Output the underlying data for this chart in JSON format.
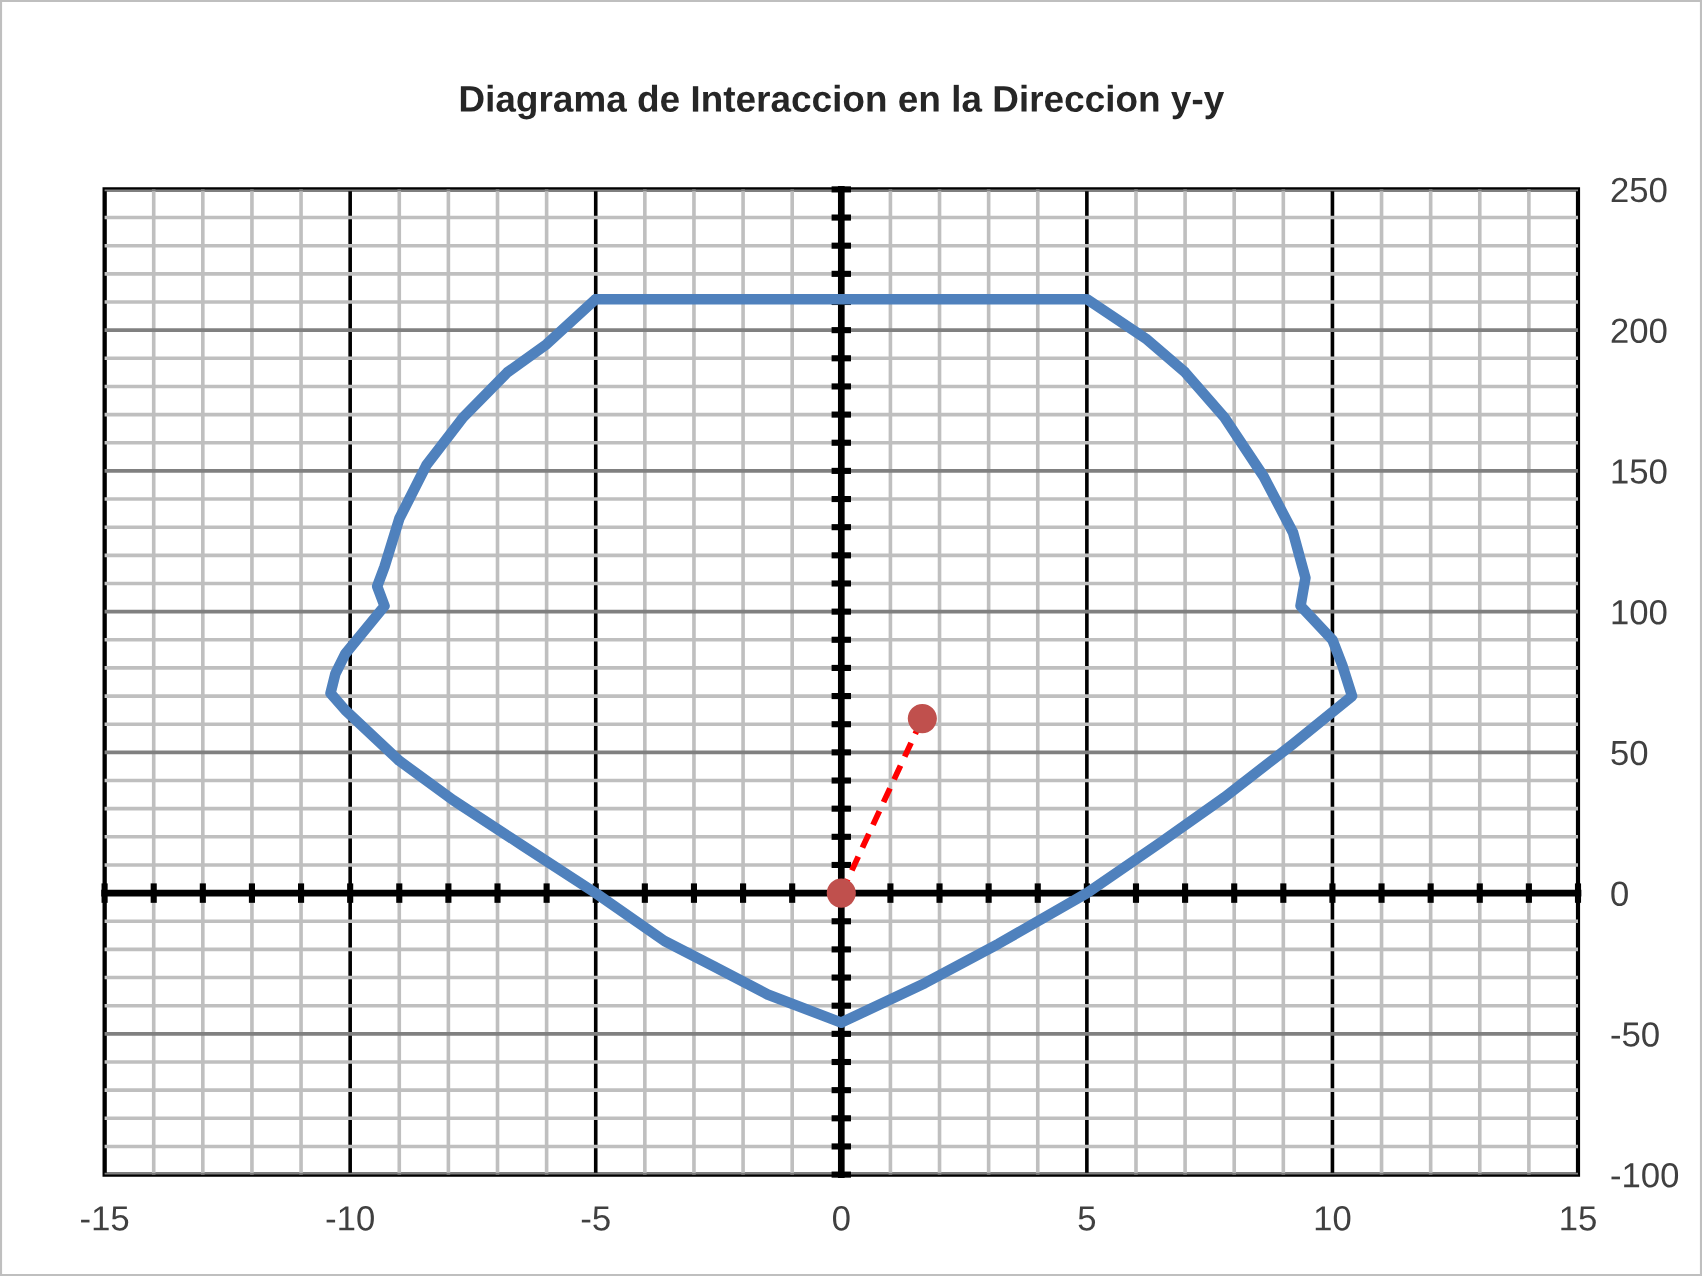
{
  "chart_data": {
    "type": "line",
    "title": "Diagrama de Interaccion en la Direccion y-y",
    "series": [
      {
        "color": "#4f81bd",
        "x": [
          -5,
          5,
          6.2,
          7.0,
          7.8,
          8.6,
          9.2,
          9.45,
          9.35,
          10.0,
          10.2,
          10.4,
          9.2,
          7.8,
          6.5,
          5,
          3.2,
          1.7,
          0
        ],
        "values": [
          211,
          211,
          197,
          185,
          169,
          148,
          128,
          112,
          102,
          90,
          81,
          70,
          53,
          34,
          18,
          0,
          -18,
          -32,
          -46
        ]
      },
      {
        "color": "#4f81bd",
        "x": [
          0,
          -1.5,
          -2.6,
          -3.6,
          -5,
          -6.5,
          -7.9,
          -9.0,
          -10.1,
          -10.4,
          -10.3,
          -10.1,
          -9.3,
          -9.45,
          -9.3,
          -9.0,
          -8.45,
          -7.7,
          -6.8,
          -6.0,
          -5
        ],
        "values": [
          -46,
          -36,
          -26,
          -17,
          0,
          17,
          33,
          47,
          65,
          71,
          78,
          85,
          102,
          109,
          116,
          133,
          152,
          169,
          185,
          195,
          211
        ]
      },
      {
        "color": "#ff0000",
        "colors": [
          "#c0504d",
          "#c0504d"
        ],
        "marker": "circle",
        "line_style": "dashed",
        "x": [
          0,
          1.65
        ],
        "values": [
          0,
          62
        ]
      }
    ],
    "xlim": [
      -15,
      15
    ],
    "ylim": [
      -100,
      250
    ],
    "xticks": [
      -15,
      {
        "value": -14,
        "label": null
      },
      {
        "value": -13,
        "label": null
      },
      {
        "value": -12,
        "label": null
      },
      {
        "value": -11,
        "label": null
      },
      -10,
      {
        "value": -9,
        "label": null
      },
      {
        "value": -8,
        "label": null
      },
      {
        "value": -7,
        "label": null
      },
      {
        "value": -6,
        "label": null
      },
      -5,
      {
        "value": -4,
        "label": null
      },
      {
        "value": -3,
        "label": null
      },
      {
        "value": -2,
        "label": null
      },
      {
        "value": -1,
        "label": null
      },
      0,
      {
        "value": 1,
        "label": null
      },
      {
        "value": 2,
        "label": null
      },
      {
        "value": 3,
        "label": null
      },
      {
        "value": 4,
        "label": null
      },
      5,
      {
        "value": 6,
        "label": null
      },
      {
        "value": 7,
        "label": null
      },
      {
        "value": 8,
        "label": null
      },
      {
        "value": 9,
        "label": null
      },
      10,
      {
        "value": 11,
        "label": null
      },
      {
        "value": 12,
        "label": null
      },
      {
        "value": 13,
        "label": null
      },
      {
        "value": 14,
        "label": null
      },
      15
    ],
    "yticks": [
      -100,
      {
        "value": -90,
        "label": null
      },
      {
        "value": -80,
        "label": null
      },
      {
        "value": -70,
        "label": null
      },
      {
        "value": -60,
        "label": null
      },
      -50,
      {
        "value": -40,
        "label": null
      },
      {
        "value": -30,
        "label": null
      },
      {
        "value": -20,
        "label": null
      },
      {
        "value": -10,
        "label": null
      },
      0,
      {
        "value": 10,
        "label": null
      },
      {
        "value": 20,
        "label": null
      },
      {
        "value": 30,
        "label": null
      },
      {
        "value": 40,
        "label": null
      },
      50,
      {
        "value": 60,
        "label": null
      },
      {
        "value": 70,
        "label": null
      },
      {
        "value": 80,
        "label": null
      },
      {
        "value": 90,
        "label": null
      },
      100,
      {
        "value": 110,
        "label": null
      },
      {
        "value": 120,
        "label": null
      },
      {
        "value": 130,
        "label": null
      },
      {
        "value": 140,
        "label": null
      },
      150,
      {
        "value": 160,
        "label": null
      },
      {
        "value": 170,
        "label": null
      },
      {
        "value": 180,
        "label": null
      },
      {
        "value": 190,
        "label": null
      },
      200,
      {
        "value": 210,
        "label": null
      },
      {
        "value": 220,
        "label": null
      },
      {
        "value": 230,
        "label": null
      },
      {
        "value": 240,
        "label": null
      },
      250
    ],
    "grid": true
  }
}
